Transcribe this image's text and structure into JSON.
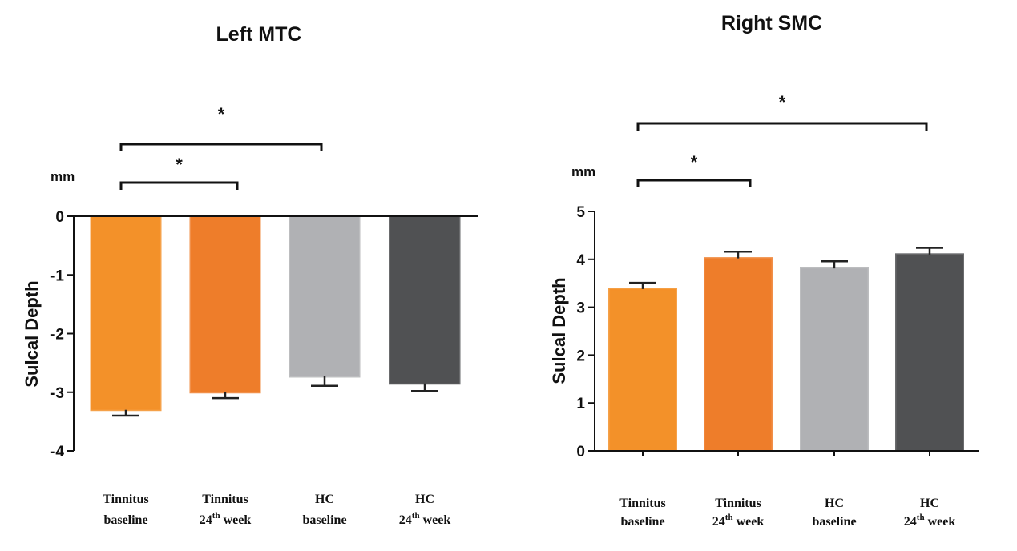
{
  "chart_data": [
    {
      "type": "bar",
      "title": "Left  MTC",
      "ylabel": "Sulcal Depth",
      "unit": "mm",
      "ylim": [
        -4,
        0
      ],
      "ticks": [
        0,
        -1,
        -2,
        -3,
        -4
      ],
      "tick_labels": [
        "0",
        "-1",
        "-2",
        "-3",
        "-4"
      ],
      "categories": [
        {
          "line1": "Tinnitus",
          "line2_pre": "baseline",
          "sup": "",
          "line2_post": ""
        },
        {
          "line1": "Tinnitus",
          "line2_pre": "24",
          "sup": "th",
          "line2_post": " week"
        },
        {
          "line1": "HC",
          "line2_pre": "baseline",
          "sup": "",
          "line2_post": ""
        },
        {
          "line1": "HC",
          "line2_pre": "24",
          "sup": "th",
          "line2_post": " week"
        }
      ],
      "values": [
        -3.3,
        -3.0,
        -2.73,
        -2.85
      ],
      "errors": [
        0.1,
        0.1,
        0.16,
        0.13
      ],
      "colors": [
        "#f39129",
        "#ee7d2a",
        "#b0b1b4",
        "#505153"
      ],
      "significance": [
        {
          "from": 0,
          "to": 1,
          "label": "*"
        },
        {
          "from": 0,
          "to": 2,
          "label": "*"
        }
      ]
    },
    {
      "type": "bar",
      "title": "Right  SMC",
      "ylabel": "Sulcal Depth",
      "unit": "mm",
      "ylim": [
        0,
        5
      ],
      "ticks": [
        5,
        4,
        3,
        2,
        1,
        0
      ],
      "tick_labels": [
        "5",
        "4",
        "3",
        "2",
        "1",
        "0"
      ],
      "categories": [
        {
          "line1": "Tinnitus",
          "line2_pre": "baseline",
          "sup": "",
          "line2_post": ""
        },
        {
          "line1": "Tinnitus",
          "line2_pre": "24",
          "sup": "th",
          "line2_post": " week"
        },
        {
          "line1": "HC",
          "line2_pre": "baseline",
          "sup": "",
          "line2_post": ""
        },
        {
          "line1": "HC",
          "line2_pre": "24",
          "sup": "th",
          "line2_post": " week"
        }
      ],
      "values": [
        3.38,
        4.02,
        3.81,
        4.1
      ],
      "errors": [
        0.13,
        0.14,
        0.15,
        0.14
      ],
      "colors": [
        "#f39129",
        "#ee7d2a",
        "#b0b1b4",
        "#505153"
      ],
      "significance": [
        {
          "from": 0,
          "to": 1,
          "label": "*"
        },
        {
          "from": 0,
          "to": 3,
          "label": "*"
        }
      ]
    }
  ]
}
